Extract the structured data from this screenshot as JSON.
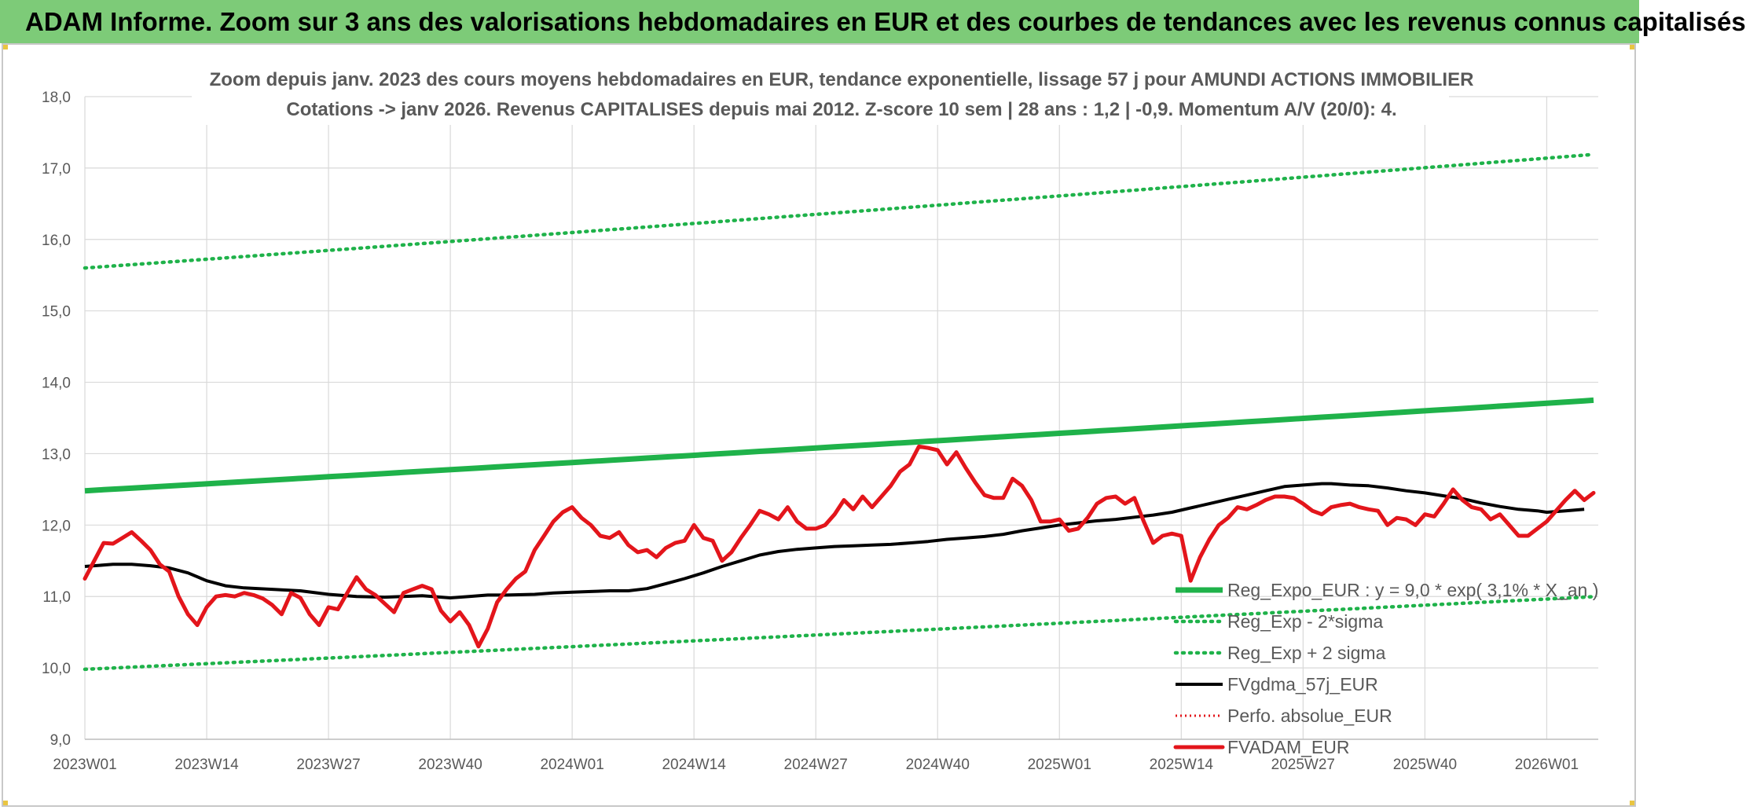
{
  "header": {
    "title": "ADAM Informe. Zoom sur 3 ans des valorisations hebdomadaires en EUR et des courbes de tendances avec les revenus connus capitalisés"
  },
  "colors": {
    "header_bg": "#7dcb78",
    "trend": "#1fb24a",
    "band": "#1fb24a",
    "smooth": "#000000",
    "perfo": "#e3151b",
    "price": "#e3151b",
    "grid": "#d9d9d9"
  },
  "chart_data": {
    "type": "line",
    "title_lines": [
      "Zoom depuis janv. 2023 des cours moyens hebdomadaires en EUR, tendance exponentielle, lissage 57 j pour AMUNDI ACTIONS IMMOBILIER",
      "Cotations -> janv 2026. Revenus CAPITALISES depuis mai 2012. Z-score 10 sem | 28 ans : 1,2 | -0,9. Momentum A/V (20/0): 4."
    ],
    "ylim": [
      9.0,
      18.0
    ],
    "yticks": [
      "9,0",
      "10,0",
      "11,0",
      "12,0",
      "13,0",
      "14,0",
      "15,0",
      "16,0",
      "17,0",
      "18,0"
    ],
    "xtick_labels": [
      "2023W01",
      "2023W14",
      "2023W27",
      "2023W40",
      "2024W01",
      "2024W14",
      "2024W27",
      "2024W40",
      "2025W01",
      "2025W14",
      "2025W27",
      "2025W40",
      "2026W01"
    ],
    "xtick_positions": [
      0,
      13,
      26,
      39,
      52,
      65,
      78,
      91,
      104,
      117,
      130,
      143,
      156
    ],
    "x_range": [
      0,
      160
    ],
    "legend": [
      {
        "label": "Reg_Expo_EUR : y = 9,0 * exp( 3,1% *  X_an )",
        "style": "trend"
      },
      {
        "label": "Reg_Exp - 2*sigma",
        "style": "band"
      },
      {
        "label": "Reg_Exp + 2 sigma",
        "style": "band"
      },
      {
        "label": "FVgdma_57j_EUR",
        "style": "smooth"
      },
      {
        "label": "Perfo. absolue_EUR",
        "style": "perfo"
      },
      {
        "label": "FVADAM_EUR",
        "style": "price"
      }
    ],
    "series": [
      {
        "name": "Reg_Expo_EUR",
        "style": "trend",
        "start": 12.48,
        "end": 13.74
      },
      {
        "name": "Reg_Exp - 2*sigma",
        "style": "band",
        "start": 9.98,
        "end": 10.99
      },
      {
        "name": "Reg_Exp + 2 sigma",
        "style": "band",
        "start": 15.6,
        "end": 17.18
      },
      {
        "name": "FVgdma_57j_EUR",
        "style": "smooth",
        "points": [
          [
            0,
            11.42
          ],
          [
            3,
            11.45
          ],
          [
            5,
            11.45
          ],
          [
            7,
            11.43
          ],
          [
            9,
            11.4
          ],
          [
            11,
            11.33
          ],
          [
            13,
            11.22
          ],
          [
            15,
            11.15
          ],
          [
            17,
            11.12
          ],
          [
            20,
            11.1
          ],
          [
            23,
            11.08
          ],
          [
            26,
            11.03
          ],
          [
            29,
            11.0
          ],
          [
            32,
            10.99
          ],
          [
            34,
            11.0
          ],
          [
            36,
            11.01
          ],
          [
            39,
            10.98
          ],
          [
            41,
            11.0
          ],
          [
            43,
            11.02
          ],
          [
            45,
            11.02
          ],
          [
            48,
            11.03
          ],
          [
            50,
            11.05
          ],
          [
            52,
            11.06
          ],
          [
            54,
            11.07
          ],
          [
            56,
            11.08
          ],
          [
            58,
            11.08
          ],
          [
            60,
            11.11
          ],
          [
            62,
            11.18
          ],
          [
            64,
            11.25
          ],
          [
            66,
            11.33
          ],
          [
            68,
            11.42
          ],
          [
            70,
            11.5
          ],
          [
            72,
            11.58
          ],
          [
            74,
            11.63
          ],
          [
            76,
            11.66
          ],
          [
            78,
            11.68
          ],
          [
            80,
            11.7
          ],
          [
            82,
            11.71
          ],
          [
            84,
            11.72
          ],
          [
            86,
            11.73
          ],
          [
            88,
            11.75
          ],
          [
            90,
            11.77
          ],
          [
            92,
            11.8
          ],
          [
            94,
            11.82
          ],
          [
            96,
            11.84
          ],
          [
            98,
            11.87
          ],
          [
            100,
            11.92
          ],
          [
            102,
            11.96
          ],
          [
            104,
            12.0
          ],
          [
            106,
            12.03
          ],
          [
            108,
            12.06
          ],
          [
            110,
            12.08
          ],
          [
            112,
            12.11
          ],
          [
            114,
            12.14
          ],
          [
            116,
            12.18
          ],
          [
            118,
            12.24
          ],
          [
            120,
            12.3
          ],
          [
            122,
            12.36
          ],
          [
            124,
            12.42
          ],
          [
            126,
            12.48
          ],
          [
            128,
            12.54
          ],
          [
            130,
            12.56
          ],
          [
            132,
            12.58
          ],
          [
            133,
            12.58
          ],
          [
            135,
            12.56
          ],
          [
            137,
            12.55
          ],
          [
            139,
            12.52
          ],
          [
            141,
            12.48
          ],
          [
            143,
            12.45
          ],
          [
            145,
            12.41
          ],
          [
            147,
            12.37
          ],
          [
            149,
            12.31
          ],
          [
            151,
            12.26
          ],
          [
            153,
            12.22
          ],
          [
            155,
            12.2
          ],
          [
            156,
            12.18
          ],
          [
            158,
            12.2
          ],
          [
            160,
            12.22
          ]
        ]
      },
      {
        "name": "FVADAM_EUR",
        "style": "price",
        "points": [
          [
            0,
            11.25
          ],
          [
            1,
            11.5
          ],
          [
            2,
            11.75
          ],
          [
            3,
            11.74
          ],
          [
            4,
            11.82
          ],
          [
            5,
            11.9
          ],
          [
            6,
            11.78
          ],
          [
            7,
            11.65
          ],
          [
            8,
            11.45
          ],
          [
            9,
            11.35
          ],
          [
            10,
            11.0
          ],
          [
            11,
            10.75
          ],
          [
            12,
            10.6
          ],
          [
            13,
            10.85
          ],
          [
            14,
            11.0
          ],
          [
            15,
            11.02
          ],
          [
            16,
            11.0
          ],
          [
            17,
            11.05
          ],
          [
            18,
            11.02
          ],
          [
            19,
            10.97
          ],
          [
            20,
            10.88
          ],
          [
            21,
            10.75
          ],
          [
            22,
            11.05
          ],
          [
            23,
            10.98
          ],
          [
            24,
            10.75
          ],
          [
            25,
            10.6
          ],
          [
            26,
            10.85
          ],
          [
            27,
            10.82
          ],
          [
            28,
            11.05
          ],
          [
            29,
            11.27
          ],
          [
            30,
            11.1
          ],
          [
            31,
            11.02
          ],
          [
            32,
            10.9
          ],
          [
            33,
            10.78
          ],
          [
            34,
            11.05
          ],
          [
            35,
            11.1
          ],
          [
            36,
            11.15
          ],
          [
            37,
            11.1
          ],
          [
            38,
            10.8
          ],
          [
            39,
            10.65
          ],
          [
            40,
            10.78
          ],
          [
            41,
            10.6
          ],
          [
            42,
            10.3
          ],
          [
            43,
            10.55
          ],
          [
            44,
            10.92
          ],
          [
            45,
            11.1
          ],
          [
            46,
            11.25
          ],
          [
            47,
            11.35
          ],
          [
            48,
            11.65
          ],
          [
            49,
            11.85
          ],
          [
            50,
            12.05
          ],
          [
            51,
            12.18
          ],
          [
            52,
            12.25
          ],
          [
            53,
            12.1
          ],
          [
            54,
            12.0
          ],
          [
            55,
            11.85
          ],
          [
            56,
            11.82
          ],
          [
            57,
            11.9
          ],
          [
            58,
            11.72
          ],
          [
            59,
            11.62
          ],
          [
            60,
            11.65
          ],
          [
            61,
            11.55
          ],
          [
            62,
            11.68
          ],
          [
            63,
            11.75
          ],
          [
            64,
            11.78
          ],
          [
            65,
            12.0
          ],
          [
            66,
            11.82
          ],
          [
            67,
            11.78
          ],
          [
            68,
            11.5
          ],
          [
            69,
            11.62
          ],
          [
            70,
            11.82
          ],
          [
            71,
            12.0
          ],
          [
            72,
            12.2
          ],
          [
            73,
            12.15
          ],
          [
            74,
            12.08
          ],
          [
            75,
            12.25
          ],
          [
            76,
            12.05
          ],
          [
            77,
            11.95
          ],
          [
            78,
            11.95
          ],
          [
            79,
            12.0
          ],
          [
            80,
            12.15
          ],
          [
            81,
            12.35
          ],
          [
            82,
            12.22
          ],
          [
            83,
            12.4
          ],
          [
            84,
            12.25
          ],
          [
            85,
            12.4
          ],
          [
            86,
            12.55
          ],
          [
            87,
            12.75
          ],
          [
            88,
            12.85
          ],
          [
            89,
            13.1
          ],
          [
            90,
            13.08
          ],
          [
            91,
            13.05
          ],
          [
            92,
            12.85
          ],
          [
            93,
            13.02
          ],
          [
            94,
            12.8
          ],
          [
            95,
            12.6
          ],
          [
            96,
            12.42
          ],
          [
            97,
            12.38
          ],
          [
            98,
            12.38
          ],
          [
            99,
            12.65
          ],
          [
            100,
            12.55
          ],
          [
            101,
            12.35
          ],
          [
            102,
            12.05
          ],
          [
            103,
            12.05
          ],
          [
            104,
            12.08
          ],
          [
            105,
            11.92
          ],
          [
            106,
            11.95
          ],
          [
            107,
            12.1
          ],
          [
            108,
            12.3
          ],
          [
            109,
            12.38
          ],
          [
            110,
            12.4
          ],
          [
            111,
            12.3
          ],
          [
            112,
            12.38
          ],
          [
            113,
            12.05
          ],
          [
            114,
            11.75
          ],
          [
            115,
            11.85
          ],
          [
            116,
            11.88
          ],
          [
            117,
            11.85
          ],
          [
            118,
            11.22
          ],
          [
            119,
            11.55
          ],
          [
            120,
            11.8
          ],
          [
            121,
            12.0
          ],
          [
            122,
            12.1
          ],
          [
            123,
            12.25
          ],
          [
            124,
            12.22
          ],
          [
            125,
            12.28
          ],
          [
            126,
            12.35
          ],
          [
            127,
            12.4
          ],
          [
            128,
            12.4
          ],
          [
            129,
            12.38
          ],
          [
            130,
            12.3
          ],
          [
            131,
            12.2
          ],
          [
            132,
            12.15
          ],
          [
            133,
            12.25
          ],
          [
            134,
            12.28
          ],
          [
            135,
            12.3
          ],
          [
            136,
            12.25
          ],
          [
            137,
            12.22
          ],
          [
            138,
            12.2
          ],
          [
            139,
            12.0
          ],
          [
            140,
            12.1
          ],
          [
            141,
            12.08
          ],
          [
            142,
            12.0
          ],
          [
            143,
            12.15
          ],
          [
            144,
            12.12
          ],
          [
            145,
            12.3
          ],
          [
            146,
            12.5
          ],
          [
            147,
            12.35
          ],
          [
            148,
            12.25
          ],
          [
            149,
            12.22
          ],
          [
            150,
            12.08
          ],
          [
            151,
            12.15
          ],
          [
            152,
            12.0
          ],
          [
            153,
            11.85
          ],
          [
            154,
            11.85
          ],
          [
            155,
            11.95
          ],
          [
            156,
            12.05
          ],
          [
            157,
            12.2
          ],
          [
            158,
            12.35
          ],
          [
            159,
            12.48
          ],
          [
            160,
            12.35
          ],
          [
            161,
            12.45
          ]
        ]
      }
    ]
  }
}
